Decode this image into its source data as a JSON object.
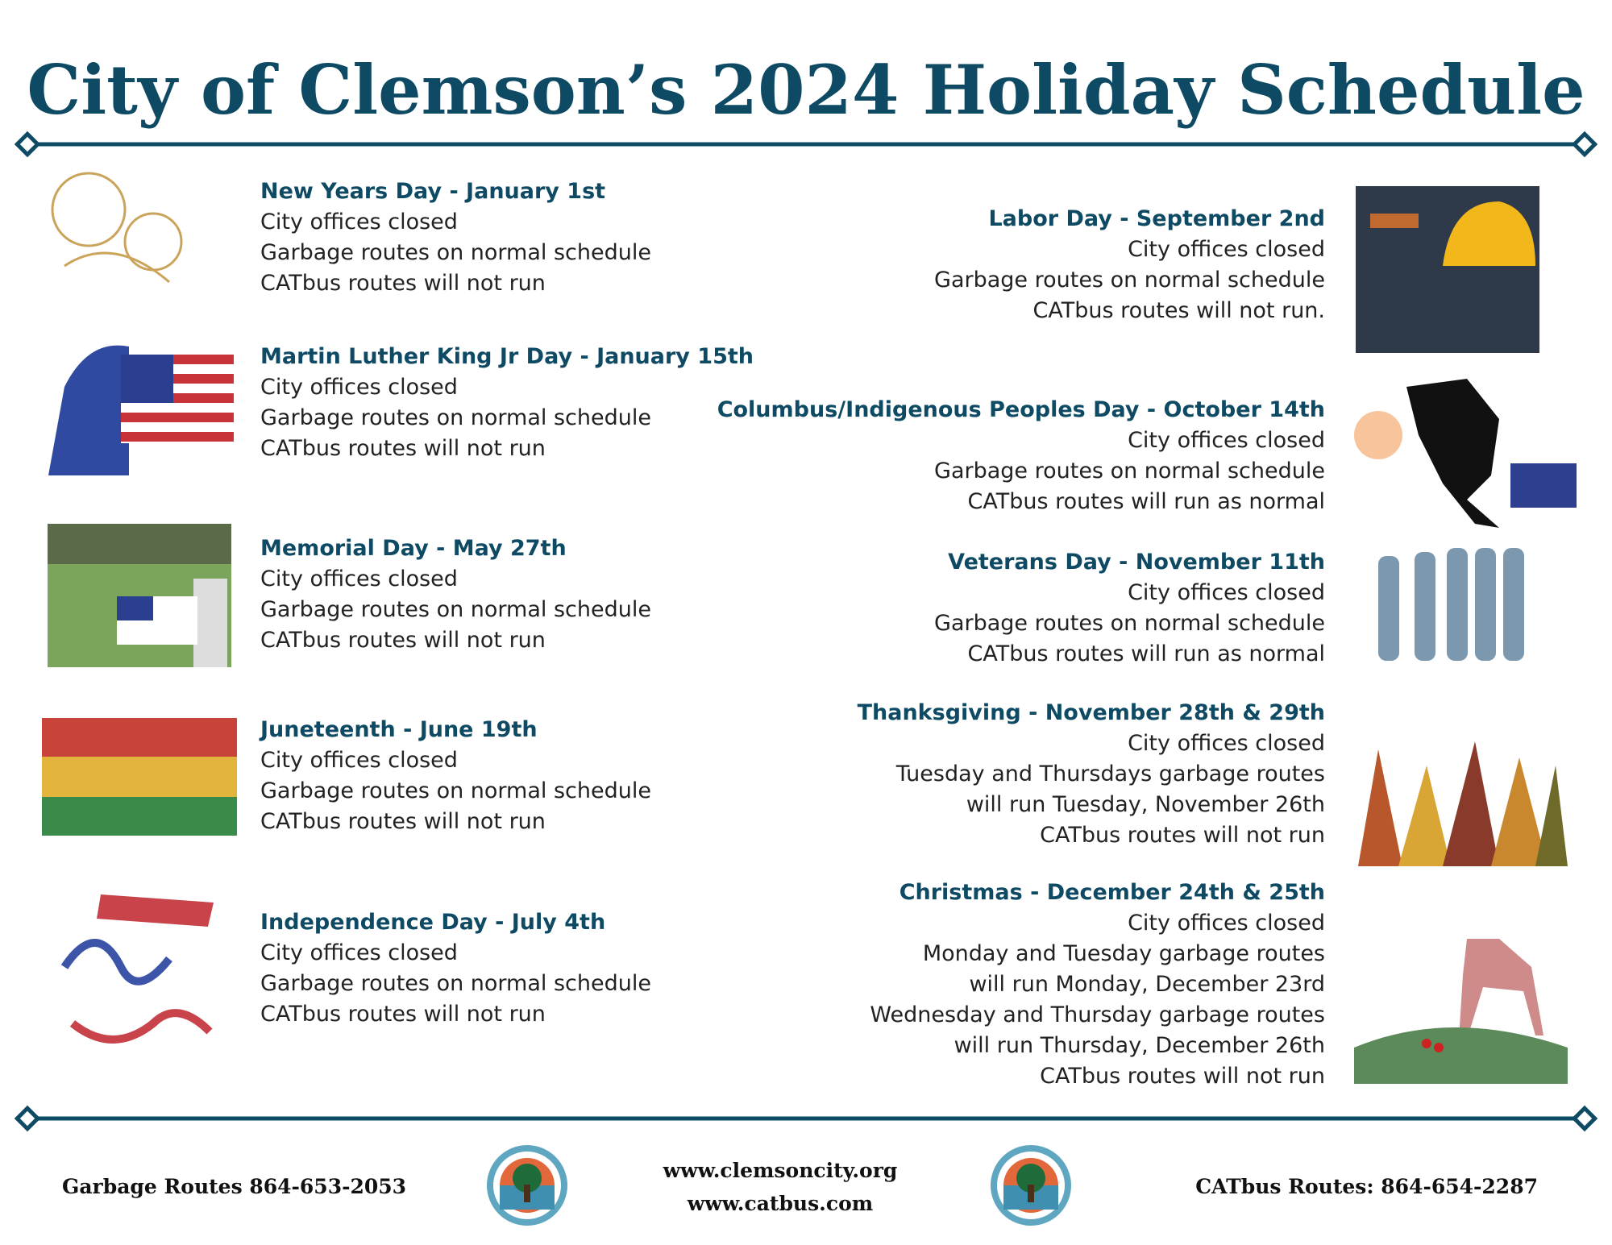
{
  "title": "City of Clemson’s 2024 Holiday Schedule",
  "holidays_left": [
    {
      "name": "New Years Day - January 1st",
      "lines": [
        "City offices closed",
        "Garbage routes on normal schedule",
        "CATbus routes will not run"
      ]
    },
    {
      "name": "Martin Luther King Jr Day - January 15th",
      "lines": [
        "City offices closed",
        "Garbage routes on normal schedule",
        "CATbus routes will not run"
      ]
    },
    {
      "name": "Memorial Day - May 27th",
      "lines": [
        "City offices closed",
        "Garbage routes on normal schedule",
        "CATbus routes will not run"
      ]
    },
    {
      "name": "Juneteenth - June 19th",
      "lines": [
        "City offices closed",
        "Garbage routes on normal schedule",
        "CATbus routes will not run"
      ]
    },
    {
      "name": "Independence Day - July 4th",
      "lines": [
        "City offices closed",
        "Garbage routes on normal schedule",
        "CATbus routes will not run"
      ]
    }
  ],
  "holidays_right": [
    {
      "name": "Labor Day - September 2nd",
      "lines": [
        "City offices closed",
        "Garbage routes on normal schedule",
        "CATbus routes will not run."
      ]
    },
    {
      "name": "Columbus/Indigenous Peoples Day - October 14th",
      "lines": [
        "City offices closed",
        "Garbage routes on normal schedule",
        "CATbus routes will run as normal"
      ]
    },
    {
      "name": "Veterans Day - November 11th",
      "lines": [
        "City offices closed",
        "Garbage routes on normal schedule",
        "CATbus routes will run as normal"
      ]
    },
    {
      "name": "Thanksgiving - November 28th & 29th",
      "lines": [
        "City offices closed",
        "Tuesday and Thursdays garbage routes",
        "will run Tuesday, November 26th",
        "CATbus routes will not run"
      ]
    },
    {
      "name": "Christmas - December 24th & 25th",
      "lines": [
        "City offices closed",
        "Monday and Tuesday garbage routes",
        "will run Monday, December 23rd",
        "Wednesday and Thursday garbage routes",
        "will run Thursday, December 26th",
        "CATbus routes will not run"
      ]
    }
  ],
  "footer": {
    "garbage": "Garbage Routes 864-653-2053",
    "websites": [
      "www.clemsoncity.org",
      "www.catbus.com"
    ],
    "catbus": "CATbus Routes: 864-654-2287"
  }
}
